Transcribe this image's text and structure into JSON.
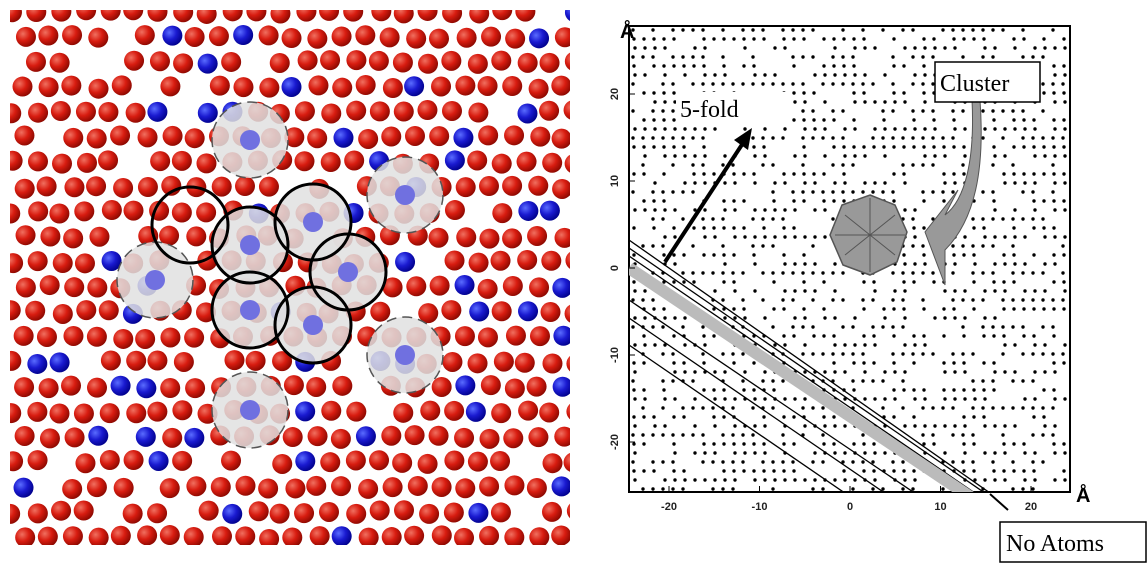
{
  "right_panel": {
    "unit_y": "Å",
    "unit_x": "Å",
    "xticks": [
      -20,
      -10,
      0,
      10,
      20
    ],
    "yticks": [
      20,
      10,
      0,
      -10,
      -20
    ],
    "annotations": {
      "five_fold": "5-fold",
      "cluster": "Cluster",
      "no_atoms": "No Atoms"
    }
  }
}
